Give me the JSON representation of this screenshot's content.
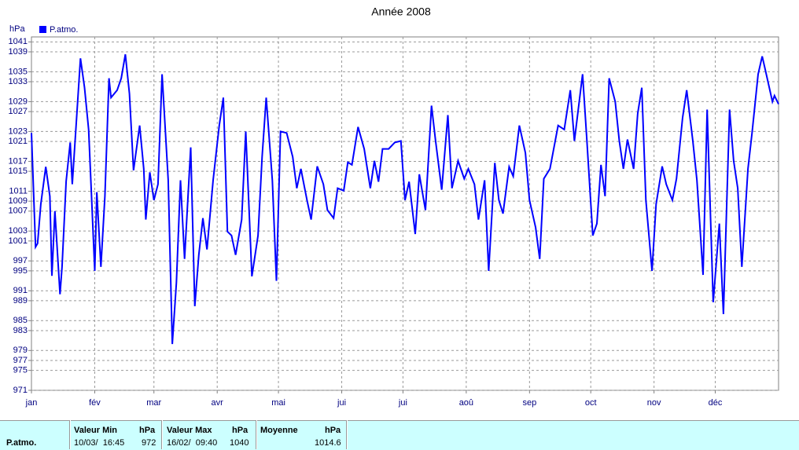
{
  "chart_data": {
    "type": "line",
    "title": "Année 2008",
    "y_label": "hPa",
    "x": [
      0,
      2,
      3,
      4.6,
      7,
      9,
      10,
      11.5,
      14,
      15,
      17,
      19,
      20,
      22,
      24,
      26,
      28,
      31,
      32,
      34,
      36,
      38,
      39,
      42,
      44,
      46,
      48,
      50,
      53,
      55,
      56,
      58,
      60,
      62,
      64,
      67,
      69,
      71,
      73,
      75,
      78,
      80,
      82,
      84,
      86,
      89,
      92,
      94,
      96,
      98,
      100,
      103,
      105,
      108,
      111,
      113,
      115,
      118,
      120,
      122,
      125,
      128,
      130,
      132,
      135,
      137,
      140,
      143,
      145,
      148,
      150,
      153,
      155,
      157,
      160,
      163,
      166,
      168,
      170,
      172,
      175,
      178,
      181,
      183,
      185,
      188,
      190,
      193,
      196,
      198,
      201,
      204,
      206,
      209,
      212,
      214,
      217,
      219,
      222,
      224,
      227,
      229,
      231,
      234,
      236,
      239,
      242,
      244,
      247,
      249,
      251,
      254,
      258,
      261,
      264,
      266,
      270,
      272,
      275,
      277,
      279,
      281,
      283,
      286,
      288,
      290,
      292,
      295,
      297,
      299,
      301,
      304,
      306,
      309,
      311,
      314,
      316,
      319,
      321,
      324,
      326,
      329,
      331,
      334,
      337,
      339,
      342,
      344,
      346,
      348,
      351,
      353,
      356,
      358,
      360,
      363,
      364,
      366
    ],
    "series": [
      {
        "name": "P.atmo.",
        "color": "#0000ff",
        "values": [
          1022.7,
          999.8,
          1000.5,
          1008.4,
          1015.9,
          1010,
          994,
          1007,
          990.3,
          995.8,
          1013,
          1020.8,
          1012.4,
          1025,
          1037.7,
          1031.8,
          1023.4,
          995,
          1010.8,
          995.8,
          1010,
          1033.7,
          1029.8,
          1031.3,
          1033.7,
          1038.5,
          1030.6,
          1015.2,
          1024.2,
          1015.5,
          1005.3,
          1014.8,
          1009.2,
          1012.4,
          1034.5,
          1013.2,
          980.3,
          992.6,
          1013.2,
          997.4,
          1019.8,
          987.9,
          998.2,
          1005.6,
          999.3,
          1013.2,
          1024.2,
          1029.8,
          1002.9,
          1002.1,
          998.2,
          1005.3,
          1023,
          993.9,
          1002.1,
          1017.9,
          1029.8,
          1013.2,
          993,
          1023,
          1022.7,
          1017.9,
          1011.6,
          1015.5,
          1009.2,
          1005.3,
          1016,
          1012.4,
          1007.2,
          1005.6,
          1011.6,
          1011.1,
          1016.8,
          1016.3,
          1023.9,
          1019.5,
          1011.6,
          1017.1,
          1012.9,
          1019.5,
          1019.5,
          1020.8,
          1021.1,
          1009.2,
          1012.9,
          1002.4,
          1014.4,
          1007.2,
          1028.2,
          1021.1,
          1011.3,
          1026.3,
          1011.6,
          1017.1,
          1013.5,
          1015.5,
          1012.4,
          1005.3,
          1013.2,
          995,
          1016.7,
          1009.2,
          1006.5,
          1015.9,
          1014,
          1024.2,
          1018.7,
          1009.2,
          1003.7,
          997.4,
          1013.5,
          1015.5,
          1024.2,
          1023.4,
          1031.3,
          1021.1,
          1034.5,
          1021.9,
          1002.1,
          1004.5,
          1016.3,
          1010,
          1033.7,
          1029,
          1021.1,
          1015.5,
          1021.4,
          1015.5,
          1026.6,
          1031.8,
          1009.2,
          995,
          1008.4,
          1016,
          1012.4,
          1009.2,
          1013.5,
          1025.8,
          1031.3,
          1021.1,
          1013.2,
          994.2,
          1027.4,
          988.7,
          1004.5,
          986.3,
          1027.4,
          1017.1,
          1011.6,
          995.8,
          1015.5,
          1022.7,
          1034.5,
          1038.1,
          1034.5,
          1029,
          1030.2,
          1028.5
        ]
      }
    ],
    "xlim": [
      0,
      366
    ],
    "xticks": [
      {
        "value": 0,
        "label": "jan"
      },
      {
        "value": 31,
        "label": "fév"
      },
      {
        "value": 60,
        "label": "mar"
      },
      {
        "value": 91,
        "label": "avr"
      },
      {
        "value": 121,
        "label": "mai"
      },
      {
        "value": 152,
        "label": "jui"
      },
      {
        "value": 182,
        "label": "jui"
      },
      {
        "value": 213,
        "label": "aoû"
      },
      {
        "value": 244,
        "label": "sep"
      },
      {
        "value": 274,
        "label": "oct"
      },
      {
        "value": 305,
        "label": "nov"
      },
      {
        "value": 335,
        "label": "déc"
      }
    ],
    "ylim": [
      971,
      1042
    ],
    "yticks": [
      971,
      975,
      977,
      979,
      983,
      985,
      989,
      991,
      995,
      997,
      1001,
      1003,
      1007,
      1009,
      1011,
      1015,
      1017,
      1021,
      1023,
      1027,
      1029,
      1033,
      1035,
      1039,
      1041
    ],
    "grid": true
  },
  "table": {
    "row_label": "P.atmo.",
    "headers": [
      "Valeur Min",
      "hPa",
      "Valeur Max",
      "hPa",
      "Moyenne",
      "hPa"
    ],
    "row": [
      "10/03/  16:45",
      "972",
      "16/02/  09:40",
      "1040",
      "1014.6"
    ]
  }
}
